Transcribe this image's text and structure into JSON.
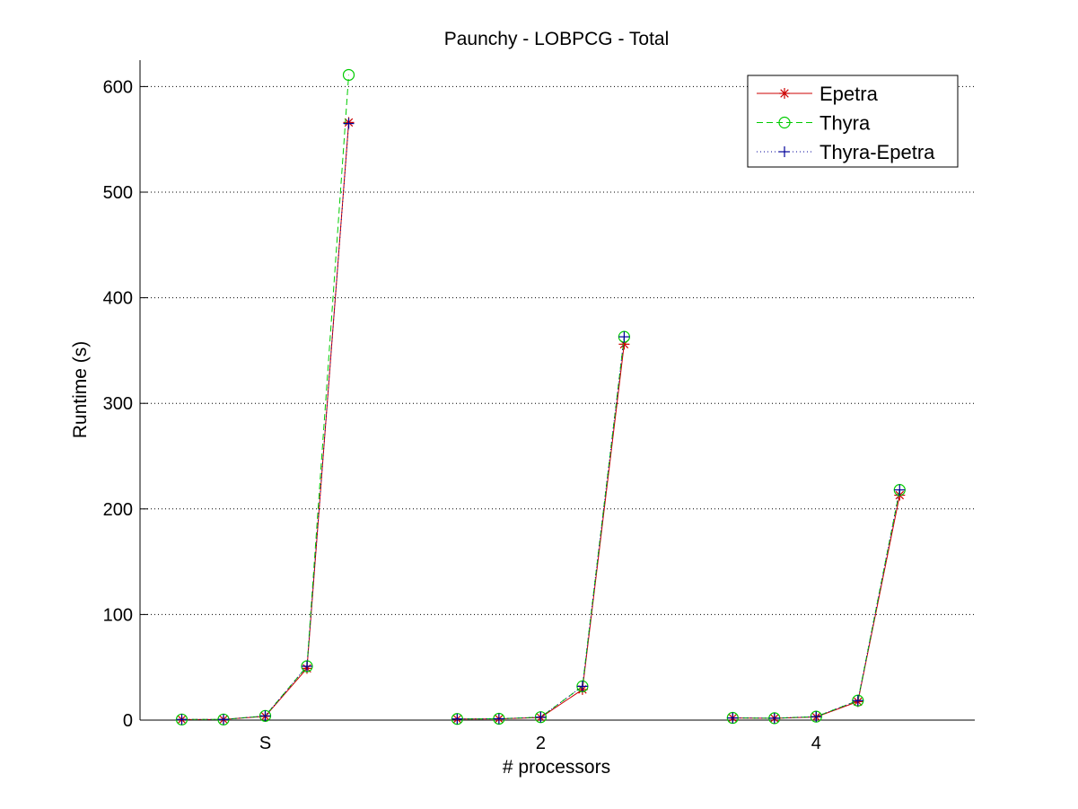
{
  "chart_data": {
    "type": "line",
    "title": "Paunchy - LOBPCG - Total",
    "xlabel": "# processors",
    "ylabel": "Runtime (s)",
    "ylim": [
      0,
      625
    ],
    "yticks": [
      0,
      100,
      200,
      300,
      400,
      500,
      600
    ],
    "grid": "y-dotted",
    "legend_position": "top-right",
    "groups": [
      {
        "label": "S",
        "x": [
          1,
          2,
          3,
          4,
          5
        ]
      },
      {
        "label": "2",
        "x": [
          7.6,
          8.6,
          9.6,
          10.6,
          11.6
        ]
      },
      {
        "label": "4",
        "x": [
          14.2,
          15.2,
          16.2,
          17.2,
          18.2
        ]
      }
    ],
    "xlim": [
      0,
      20
    ],
    "series": [
      {
        "name": "Epetra",
        "color": "#cc0000",
        "marker": "asterisk",
        "dash": "solid",
        "groups": [
          [
            0.5,
            0.6,
            3.6,
            49,
            566
          ],
          [
            1.0,
            1.2,
            2.5,
            29,
            356
          ],
          [
            2.0,
            1.7,
            3.0,
            17.5,
            213
          ]
        ]
      },
      {
        "name": "Thyra",
        "color": "#00cc00",
        "marker": "circle",
        "dash": "dashed",
        "groups": [
          [
            0.6,
            0.6,
            4.0,
            51,
            611
          ],
          [
            1.1,
            1.3,
            2.8,
            32,
            363
          ],
          [
            2.1,
            1.8,
            3.3,
            18.5,
            218
          ]
        ]
      },
      {
        "name": "Thyra-Epetra",
        "color": "#000099",
        "marker": "plus",
        "dash": "dotted",
        "groups": [
          [
            0.6,
            0.6,
            4.0,
            51,
            565
          ],
          [
            1.1,
            1.3,
            2.8,
            32,
            363
          ],
          [
            2.1,
            1.8,
            3.3,
            18.5,
            218
          ]
        ]
      }
    ]
  }
}
